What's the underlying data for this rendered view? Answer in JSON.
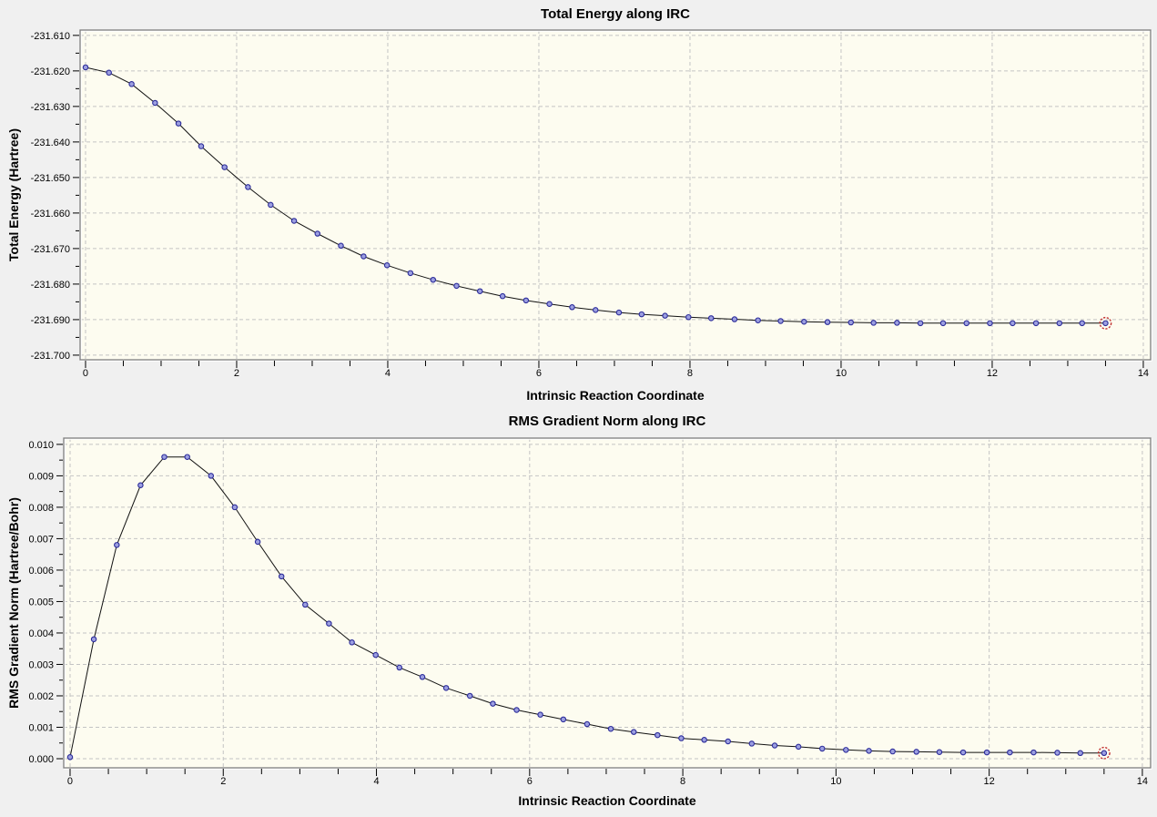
{
  "window": {
    "background_color": "#f0f0f0"
  },
  "colors": {
    "plot_background": "#fdfcf0",
    "grid": "#c4c4c4",
    "frame_dark": "#7e7e7e",
    "frame_light": "#ffffff",
    "line": "#111111",
    "marker_fill": "#9c9fe0",
    "marker_stroke": "#2c2c9a",
    "highlight_ring": "#c23030",
    "tick": "#000000",
    "text": "#000000"
  },
  "chart_data": [
    {
      "type": "line",
      "title": "Total Energy along IRC",
      "xlabel": "Intrinsic Reaction Coordinate",
      "ylabel": "Total Energy (Hartree)",
      "xlim": [
        -0.072,
        14.097
      ],
      "ylim": [
        -231.7013,
        -231.6085
      ],
      "x_tick_values": [
        0,
        2,
        4,
        6,
        8,
        10,
        12,
        14
      ],
      "x_tick_labels": [
        "0",
        "2",
        "4",
        "6",
        "8",
        "10",
        "12",
        "14"
      ],
      "x_minor_tick_interval": 0.5,
      "y_tick_values": [
        -231.61,
        -231.62,
        -231.63,
        -231.64,
        -231.65,
        -231.66,
        -231.67,
        -231.68,
        -231.69,
        -231.7
      ],
      "y_tick_labels": [
        "-231.610",
        "-231.620",
        "-231.630",
        "-231.640",
        "-231.650",
        "-231.660",
        "-231.670",
        "-231.680",
        "-231.690",
        "-231.700"
      ],
      "grid": "dashed-on-major-ticks",
      "legend": "none",
      "marker": "circle",
      "highlighted_point_index": 44,
      "x": [
        0,
        0.31,
        0.61,
        0.92,
        1.23,
        1.53,
        1.84,
        2.15,
        2.45,
        2.76,
        3.07,
        3.38,
        3.68,
        3.99,
        4.3,
        4.6,
        4.91,
        5.22,
        5.52,
        5.83,
        6.14,
        6.44,
        6.75,
        7.06,
        7.36,
        7.67,
        7.98,
        8.28,
        8.59,
        8.9,
        9.2,
        9.51,
        9.82,
        10.13,
        10.43,
        10.74,
        11.05,
        11.35,
        11.66,
        11.97,
        12.27,
        12.58,
        12.89,
        13.19,
        13.5
      ],
      "y": [
        -231.619,
        -231.6205,
        -231.6237,
        -231.629,
        -231.6348,
        -231.6412,
        -231.6471,
        -231.6527,
        -231.6577,
        -231.6622,
        -231.6658,
        -231.6692,
        -231.6722,
        -231.6747,
        -231.6769,
        -231.6788,
        -231.6805,
        -231.682,
        -231.6834,
        -231.6846,
        -231.6856,
        -231.6865,
        -231.6873,
        -231.688,
        -231.6885,
        -231.6889,
        -231.6893,
        -231.6896,
        -231.6899,
        -231.6902,
        -231.6904,
        -231.6906,
        -231.6907,
        -231.6908,
        -231.6909,
        -231.6909,
        -231.691,
        -231.691,
        -231.691,
        -231.691,
        -231.691,
        -231.691,
        -231.691,
        -231.691,
        -231.691
      ]
    },
    {
      "type": "line",
      "title": "RMS Gradient Norm along IRC",
      "xlabel": "Intrinsic Reaction Coordinate",
      "ylabel": "RMS Gradient Norm (Hartree/Bohr)",
      "xlim": [
        -0.083,
        14.108
      ],
      "ylim": [
        -0.00029,
        0.0102
      ],
      "x_tick_values": [
        0,
        2,
        4,
        6,
        8,
        10,
        12,
        14
      ],
      "x_tick_labels": [
        "0",
        "2",
        "4",
        "6",
        "8",
        "10",
        "12",
        "14"
      ],
      "x_minor_tick_interval": 0.5,
      "y_tick_values": [
        0,
        0.001,
        0.002,
        0.003,
        0.004,
        0.005,
        0.006,
        0.007,
        0.008,
        0.009,
        0.01
      ],
      "y_tick_labels": [
        "0.000",
        "0.001",
        "0.002",
        "0.003",
        "0.004",
        "0.005",
        "0.006",
        "0.007",
        "0.008",
        "0.009",
        "0.010"
      ],
      "grid": "dashed-on-major-ticks",
      "legend": "none",
      "marker": "circle",
      "highlighted_point_index": 44,
      "x": [
        0,
        0.31,
        0.61,
        0.92,
        1.23,
        1.53,
        1.84,
        2.15,
        2.45,
        2.76,
        3.07,
        3.38,
        3.68,
        3.99,
        4.3,
        4.6,
        4.91,
        5.22,
        5.52,
        5.83,
        6.14,
        6.44,
        6.75,
        7.06,
        7.36,
        7.67,
        7.98,
        8.28,
        8.59,
        8.9,
        9.2,
        9.51,
        9.82,
        10.13,
        10.43,
        10.74,
        11.05,
        11.35,
        11.66,
        11.97,
        12.27,
        12.58,
        12.89,
        13.19,
        13.5
      ],
      "y": [
        5e-05,
        0.0038,
        0.0068,
        0.0087,
        0.0096,
        0.0096,
        0.009,
        0.008,
        0.0069,
        0.0058,
        0.0049,
        0.0043,
        0.0037,
        0.0033,
        0.0029,
        0.0026,
        0.00225,
        0.002,
        0.00175,
        0.00155,
        0.0014,
        0.00125,
        0.0011,
        0.00095,
        0.00085,
        0.00075,
        0.00065,
        0.0006,
        0.00055,
        0.00048,
        0.00042,
        0.00038,
        0.00032,
        0.00028,
        0.00025,
        0.00023,
        0.00022,
        0.00021,
        0.0002,
        0.0002,
        0.0002,
        0.0002,
        0.00019,
        0.00018,
        0.00018
      ]
    }
  ]
}
